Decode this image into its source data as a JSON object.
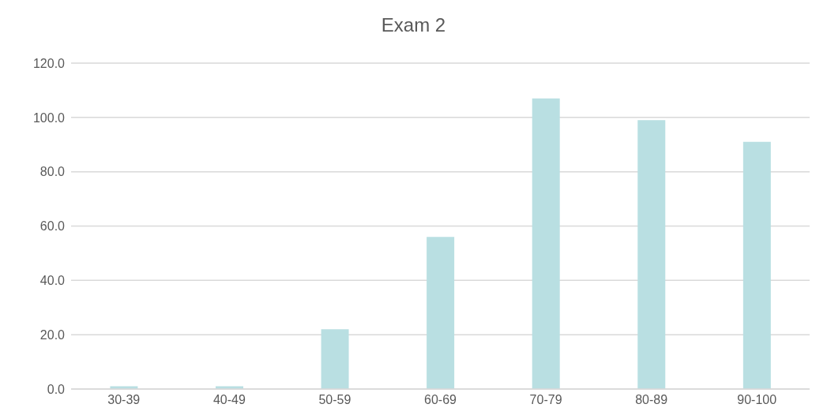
{
  "chart_data": {
    "type": "bar",
    "title": "Exam 2",
    "categories": [
      "30-39",
      "40-49",
      "50-59",
      "60-69",
      "70-79",
      "80-89",
      "90-100"
    ],
    "values": [
      1,
      1,
      22,
      56,
      107,
      99,
      91
    ],
    "color": "#b9dfe2",
    "ylim": [
      0,
      120
    ],
    "yticks": [
      {
        "value": 0,
        "label": "0.0"
      },
      {
        "value": 20,
        "label": "20.0"
      },
      {
        "value": 40,
        "label": "40.0"
      },
      {
        "value": 60,
        "label": "60.0"
      },
      {
        "value": 80,
        "label": "80.0"
      },
      {
        "value": 100,
        "label": "100.0"
      },
      {
        "value": 120,
        "label": "120.0"
      }
    ],
    "grid": "y"
  }
}
